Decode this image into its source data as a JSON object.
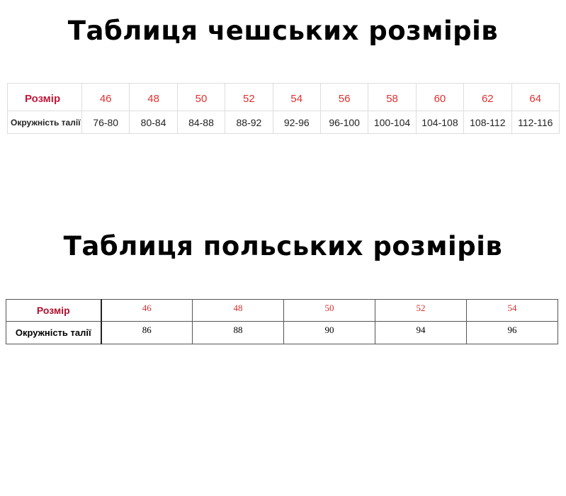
{
  "czech": {
    "title": "Таблиця чешських розмірів",
    "row_labels": [
      "Розмір",
      "Окружність талії"
    ],
    "sizes": [
      "46",
      "48",
      "50",
      "52",
      "54",
      "56",
      "58",
      "60",
      "62",
      "64"
    ],
    "waist": [
      "76-80",
      "80-84",
      "84-88",
      "88-92",
      "92-96",
      "96-100",
      "100-104",
      "104-108",
      "108-112",
      "112-116"
    ]
  },
  "polish": {
    "title": "Таблиця польських розмірів",
    "row_labels": [
      "Розмір",
      "Окружність талії"
    ],
    "sizes": [
      "46",
      "48",
      "50",
      "52",
      "54"
    ],
    "waist": [
      "86",
      "88",
      "90",
      "94",
      "96"
    ]
  },
  "colors": {
    "size_text": "#e03030",
    "label_red": "#c0183a"
  }
}
